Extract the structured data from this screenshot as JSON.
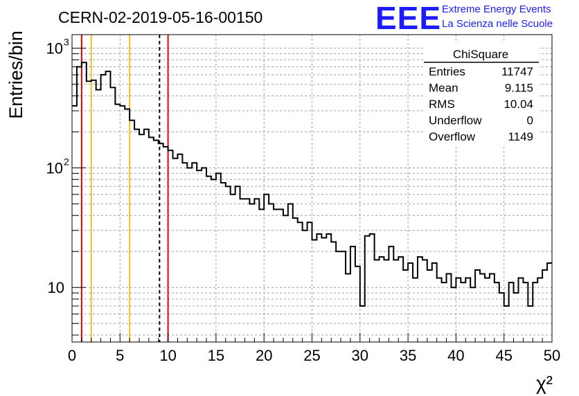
{
  "header": {
    "run_title": "CERN-02-2019-05-16-00150",
    "logo_text": "EEE",
    "logo_line1": "Extreme Energy Events",
    "logo_line2": "La Scienza nelle Scuole",
    "logo_color": "#1c1cff"
  },
  "stats_box": {
    "title": "ChiSquare",
    "rows": [
      {
        "label": "Entries",
        "value": "11747"
      },
      {
        "label": "Mean",
        "value": "9.115"
      },
      {
        "label": "RMS",
        "value": "10.04"
      },
      {
        "label": "Underflow",
        "value": "0"
      },
      {
        "label": "Overflow",
        "value": "1149"
      }
    ]
  },
  "chart_data": {
    "type": "histogram",
    "xlabel": "χ²",
    "ylabel": "Entries/bin",
    "xlim": [
      0,
      50
    ],
    "ylim": [
      3.5,
      1300
    ],
    "y_scale": "log",
    "grid": true,
    "bin_width": 0.5,
    "bin_edges_start": 0,
    "values": [
      330,
      700,
      760,
      530,
      540,
      450,
      600,
      640,
      470,
      340,
      330,
      310,
      250,
      210,
      190,
      210,
      180,
      170,
      160,
      150,
      140,
      120,
      130,
      110,
      100,
      110,
      95,
      100,
      85,
      80,
      90,
      75,
      70,
      60,
      70,
      55,
      55,
      50,
      55,
      45,
      60,
      50,
      45,
      45,
      40,
      50,
      38,
      35,
      30,
      35,
      25,
      28,
      26,
      28,
      24,
      20,
      20,
      13,
      22,
      15,
      7,
      27,
      28,
      17,
      18,
      17,
      22,
      17,
      18,
      14,
      16,
      12,
      18,
      17,
      14,
      16,
      12,
      11,
      13,
      10,
      12,
      11,
      12,
      10,
      14,
      13,
      12,
      13,
      11,
      9,
      7,
      11,
      9,
      12,
      11,
      7,
      11,
      12,
      14,
      16
    ],
    "vertical_lines": [
      {
        "x": 1,
        "color": "#e00000",
        "style": "solid"
      },
      {
        "x": 2,
        "color": "#f0c020",
        "style": "solid"
      },
      {
        "x": 6,
        "color": "#f0c020",
        "style": "solid"
      },
      {
        "x": 9.115,
        "color": "#000000",
        "style": "dashed"
      },
      {
        "x": 10,
        "color": "#e00000",
        "style": "solid"
      }
    ],
    "x_ticks": [
      0,
      5,
      10,
      15,
      20,
      25,
      30,
      35,
      40,
      45,
      50
    ],
    "y_major_ticks": [
      {
        "value": 10,
        "label": "10"
      },
      {
        "value": 100,
        "label": "10",
        "exp": "2"
      },
      {
        "value": 1000,
        "label": "10",
        "exp": "3"
      }
    ],
    "line_color": "#000000"
  }
}
